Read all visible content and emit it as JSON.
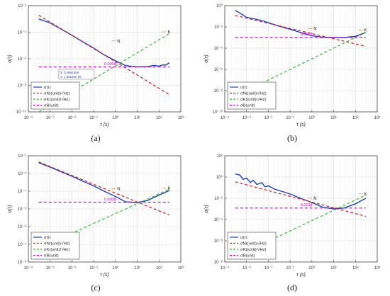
{
  "figure": {
    "captions": [
      "(a)",
      "(b)",
      "(c)",
      "(d)"
    ]
  },
  "colors": {
    "sigma": "#1f3fbf",
    "N": "#d01c1c",
    "K": "#2bbf2b",
    "B": "#d000d0",
    "annotation_text": "#3a3ae0",
    "label_color": "#e07000"
  },
  "chart_data": [
    {
      "type": "line",
      "panel": "(a)",
      "xlabel": "τ (s)",
      "ylabel": "σ(τ)",
      "xscale": "log",
      "yscale": "log",
      "xlim": [
        0.0001,
        1000
      ],
      "ylim": [
        1e-10,
        0.01
      ],
      "x_ticks": [
        "10⁻⁴",
        "10⁻³",
        "10⁻²",
        "10⁻¹",
        "10⁰",
        "10¹",
        "10²",
        "10³"
      ],
      "y_ticks": [
        "10⁻¹⁰",
        "10⁻⁸",
        "10⁻⁶",
        "10⁻⁴",
        "10⁻²"
      ],
      "grid": true,
      "legend_position": "bottom-left",
      "series": [
        {
          "name": "σ(τ)",
          "key": "sigma",
          "style": "solid",
          "x": [
            0.0003,
            0.001,
            0.003,
            0.01,
            0.03,
            0.1,
            0.3,
            1,
            3,
            10,
            30,
            60,
            100,
            150,
            200,
            300
          ],
          "y": [
            0.001,
            0.0005,
            0.00018,
            6e-05,
            2e-05,
            6.5e-06,
            2e-06,
            7e-07,
            3e-07,
            2.5e-07,
            2.6e-07,
            3.2e-07,
            2.8e-07,
            3.5e-07,
            3.3e-07,
            5e-07
          ]
        },
        {
          "name": "σN((unit)/√Hz)",
          "key": "N",
          "style": "dashed",
          "x": [
            0.0003,
            300
          ],
          "y": [
            0.0019,
            2e-09
          ]
        },
        {
          "name": "σK((unit)/√Hz)",
          "key": "K",
          "style": "dashed",
          "x": [
            0.0003,
            300
          ],
          "y": [
            1e-10,
            8e-05
          ]
        },
        {
          "name": "σB(unit)",
          "key": "B",
          "style": "dashed",
          "x": [
            0.0003,
            300
          ],
          "y": [
            2.5e-07,
            2.5e-07
          ]
        }
      ],
      "annotations": [
        {
          "text": "N",
          "x": 1.2,
          "y": 2.5e-05
        },
        {
          "text": "K",
          "x": 250,
          "y": 0.00012
        },
        {
          "text": "0.0008",
          "x": 0.3,
          "y": 3.3e-07
        },
        {
          "text": "X: 0.0684358\nY: 1.56155e-06",
          "x": 0.0025,
          "y": 6e-08
        }
      ]
    },
    {
      "type": "line",
      "panel": "(b)",
      "xlabel": "τ (s)",
      "ylabel": "σ(τ)",
      "xscale": "log",
      "yscale": "log",
      "xlim": [
        0.0001,
        1000
      ],
      "ylim": [
        1e-10,
        1
      ],
      "x_ticks": [
        "10⁻⁴",
        "10⁻³",
        "10⁻²",
        "10⁻¹",
        "10⁰",
        "10¹",
        "10²",
        "10³"
      ],
      "y_ticks": [
        "10⁻¹⁰",
        "10⁻⁸",
        "10⁻⁶",
        "10⁻⁴",
        "10⁻²",
        "10⁰"
      ],
      "grid": true,
      "legend_position": "bottom-left",
      "series": [
        {
          "name": "σ(τ)",
          "key": "sigma",
          "style": "solid",
          "x": [
            0.0003,
            0.0005,
            0.001,
            0.002,
            0.005,
            0.01,
            0.03,
            0.1,
            0.3,
            1,
            3,
            10,
            30,
            100,
            300
          ],
          "y": [
            0.35,
            0.2,
            0.08,
            0.06,
            0.04,
            0.025,
            0.012,
            0.006,
            0.003,
            0.0015,
            0.0011,
            0.001,
            0.001,
            0.0013,
            0.003
          ]
        },
        {
          "name": "σN((unit)/√Hz)",
          "key": "N",
          "style": "dashed",
          "x": [
            0.0003,
            300
          ],
          "y": [
            0.12,
            0.00015
          ]
        },
        {
          "name": "σK((unit)/√Hz)",
          "key": "K",
          "style": "dashed",
          "x": [
            0.0003,
            300
          ],
          "y": [
            3e-09,
            0.003
          ]
        },
        {
          "name": "σB(unit)",
          "key": "B",
          "style": "dashed",
          "x": [
            0.0003,
            300
          ],
          "y": [
            0.001,
            0.001
          ]
        }
      ],
      "annotations": [
        {
          "text": "N",
          "x": 1.2,
          "y": 0.008
        },
        {
          "text": "K",
          "x": 250,
          "y": 0.006
        },
        {
          "text": "0.0018",
          "x": 0.3,
          "y": 0.0016
        }
      ]
    },
    {
      "type": "line",
      "panel": "(c)",
      "xlabel": "τ (s)",
      "ylabel": "σ(τ)",
      "xscale": "log",
      "yscale": "log",
      "xlim": [
        0.0001,
        1000
      ],
      "ylim": [
        1e-08,
        0.01
      ],
      "x_ticks": [
        "10⁻⁴",
        "10⁻³",
        "10⁻²",
        "10⁻¹",
        "10⁰",
        "10¹",
        "10²",
        "10³"
      ],
      "y_ticks": [
        "10⁻⁸",
        "10⁻⁷",
        "10⁻⁶",
        "10⁻⁵",
        "10⁻⁴",
        "10⁻³",
        "10⁻²"
      ],
      "grid": true,
      "legend_position": "bottom-left",
      "series": [
        {
          "name": "σ(τ)",
          "key": "sigma",
          "style": "solid",
          "x": [
            0.0003,
            0.001,
            0.003,
            0.01,
            0.03,
            0.1,
            0.3,
            1,
            3,
            10,
            30,
            100,
            300
          ],
          "y": [
            0.004,
            0.0023,
            0.0013,
            0.0007,
            0.00038,
            0.0002,
            0.0001,
            5e-05,
            2.5e-05,
            2.3e-05,
            3e-05,
            6e-05,
            0.00011
          ]
        },
        {
          "name": "σN((unit)/√Hz)",
          "key": "N",
          "style": "dashed",
          "x": [
            0.0003,
            300
          ],
          "y": [
            0.0045,
            4.5e-06
          ]
        },
        {
          "name": "σK((unit)/√Hz)",
          "key": "K",
          "style": "dashed",
          "x": [
            0.0003,
            300
          ],
          "y": [
            6e-08,
            0.00013
          ]
        },
        {
          "name": "σB(unit)",
          "key": "B",
          "style": "dashed",
          "x": [
            0.0003,
            300
          ],
          "y": [
            2.4e-05,
            2.4e-05
          ]
        }
      ],
      "annotations": [
        {
          "text": "N",
          "x": 1.2,
          "y": 0.00015
        },
        {
          "text": "K",
          "x": 250,
          "y": 0.00016
        },
        {
          "text": "0.0008",
          "x": 0.3,
          "y": 3e-05
        }
      ]
    },
    {
      "type": "line",
      "panel": "(d)",
      "xlabel": "τ (s)",
      "ylabel": "σ(τ)",
      "xscale": "log",
      "yscale": "log",
      "xlim": [
        0.0001,
        1000
      ],
      "ylim": [
        1e-08,
        100
      ],
      "x_ticks": [
        "10⁻⁴",
        "10⁻³",
        "10⁻²",
        "10⁻¹",
        "10⁰",
        "10¹",
        "10²",
        "10³"
      ],
      "y_ticks": [
        "10⁻⁸",
        "10⁻⁶",
        "10⁻⁴",
        "10⁻²",
        "10⁰",
        "10²"
      ],
      "grid": true,
      "legend_position": "bottom-left",
      "series": [
        {
          "name": "σ(τ)",
          "key": "sigma",
          "style": "solid",
          "x": [
            0.0003,
            0.0005,
            0.0007,
            0.001,
            0.0015,
            0.002,
            0.003,
            0.005,
            0.007,
            0.01,
            0.02,
            0.05,
            0.1,
            0.3,
            1,
            3,
            10,
            30,
            100,
            300
          ],
          "y": [
            2,
            1.5,
            0.6,
            0.8,
            0.3,
            0.5,
            0.2,
            0.3,
            0.12,
            0.15,
            0.07,
            0.04,
            0.025,
            0.01,
            0.004,
            0.0015,
            0.001,
            0.0012,
            0.003,
            0.01
          ]
        },
        {
          "name": "σN((unit)/√Hz)",
          "key": "N",
          "style": "dashed",
          "x": [
            0.0003,
            300
          ],
          "y": [
            0.35,
            0.0002
          ]
        },
        {
          "name": "σK((unit)/√Hz)",
          "key": "K",
          "style": "dashed",
          "x": [
            0.0003,
            300
          ],
          "y": [
            3e-08,
            0.02
          ]
        },
        {
          "name": "σB(unit)",
          "key": "B",
          "style": "dashed",
          "x": [
            0.0003,
            300
          ],
          "y": [
            0.0012,
            0.0012
          ]
        }
      ],
      "annotations": [
        {
          "text": "N",
          "x": 1.2,
          "y": 0.012
        },
        {
          "text": "K",
          "x": 250,
          "y": 0.03
        },
        {
          "text": "0.0018",
          "x": 0.3,
          "y": 0.0018
        }
      ]
    }
  ]
}
